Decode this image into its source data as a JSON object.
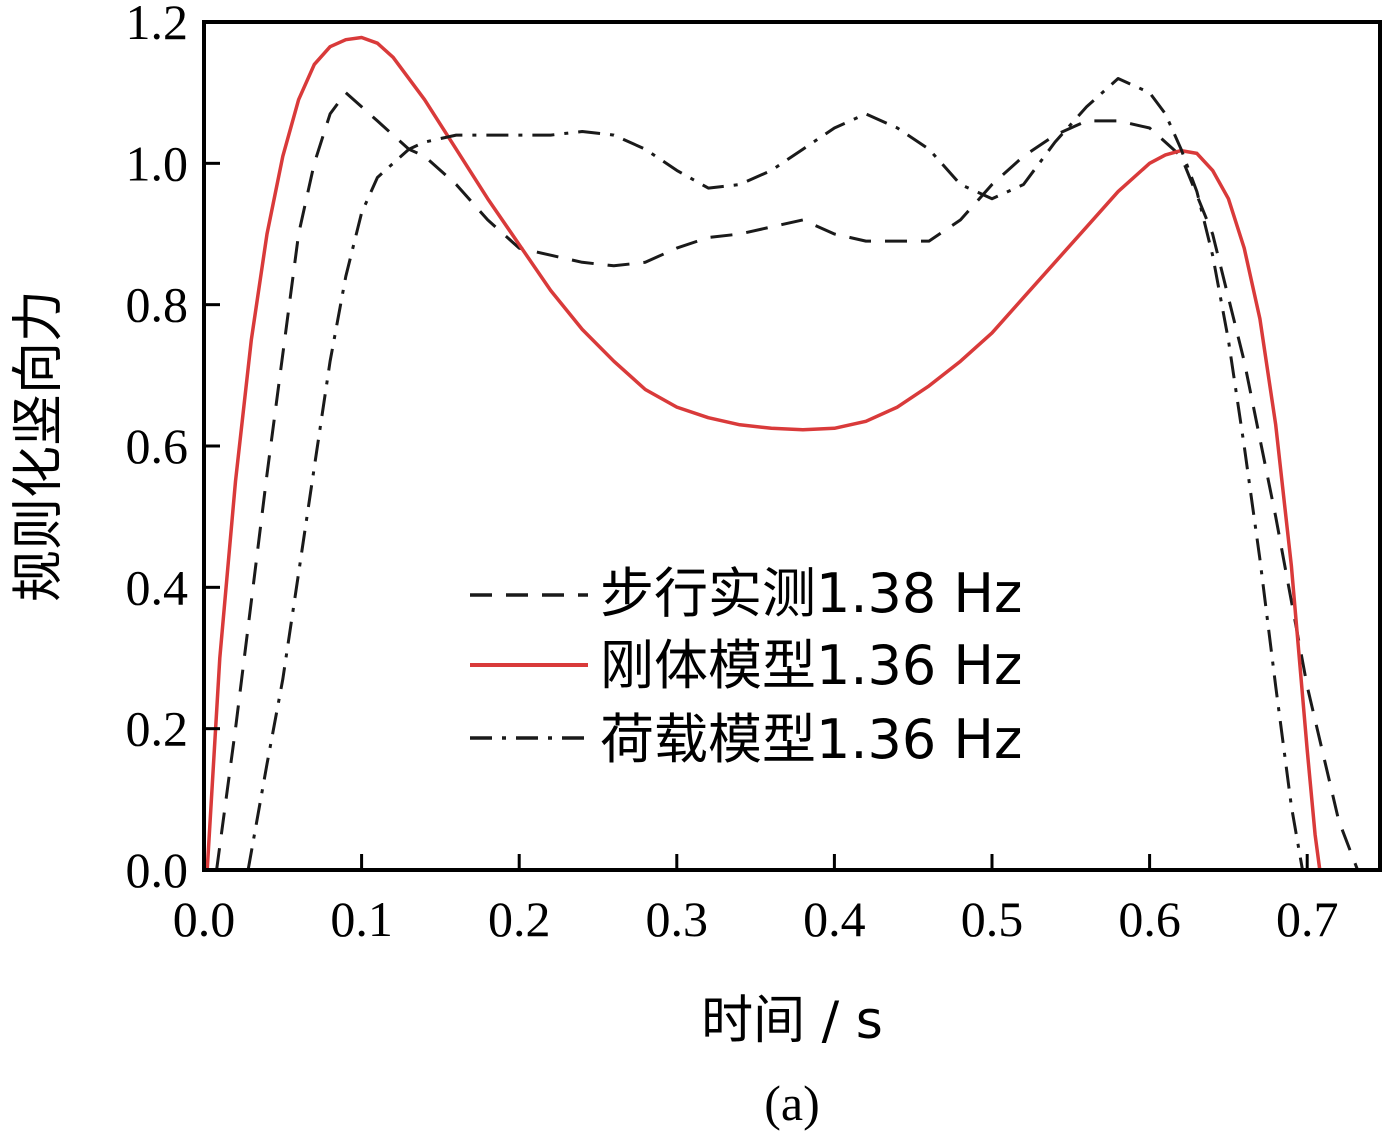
{
  "chart_data": {
    "type": "line",
    "xlabel": "时间 / s",
    "ylabel": "规则化竖向力",
    "caption": "(a)",
    "xlim": [
      0,
      0.74
    ],
    "ylim": [
      0,
      1.2
    ],
    "xticks": [
      "0.0",
      "0.1",
      "0.2",
      "0.3",
      "0.4",
      "0.5",
      "0.6",
      "0.7"
    ],
    "yticks": [
      "0.0",
      "0.2",
      "0.4",
      "0.6",
      "0.8",
      "1.0",
      "1.2"
    ],
    "grid": false,
    "legend_position": "center",
    "series": [
      {
        "name": "步行实测1.38 Hz",
        "style": "dashed",
        "color": "#1a1a1a",
        "x": [
          0.008,
          0.02,
          0.03,
          0.04,
          0.05,
          0.06,
          0.07,
          0.08,
          0.09,
          0.1,
          0.11,
          0.12,
          0.13,
          0.14,
          0.16,
          0.18,
          0.2,
          0.22,
          0.24,
          0.26,
          0.28,
          0.3,
          0.32,
          0.34,
          0.36,
          0.38,
          0.4,
          0.42,
          0.44,
          0.46,
          0.48,
          0.5,
          0.52,
          0.54,
          0.56,
          0.58,
          0.6,
          0.62,
          0.64,
          0.66,
          0.68,
          0.7,
          0.72,
          0.732
        ],
        "y": [
          0.0,
          0.2,
          0.38,
          0.56,
          0.73,
          0.9,
          1.0,
          1.07,
          1.1,
          1.08,
          1.06,
          1.04,
          1.02,
          1.01,
          0.97,
          0.92,
          0.88,
          0.87,
          0.86,
          0.855,
          0.86,
          0.88,
          0.895,
          0.9,
          0.91,
          0.92,
          0.9,
          0.89,
          0.89,
          0.89,
          0.92,
          0.97,
          1.01,
          1.04,
          1.06,
          1.06,
          1.05,
          1.01,
          0.9,
          0.72,
          0.5,
          0.26,
          0.07,
          0.0
        ]
      },
      {
        "name": "刚体模型1.36 Hz",
        "style": "solid",
        "color": "#d93a3a",
        "x": [
          0.002,
          0.01,
          0.02,
          0.03,
          0.04,
          0.05,
          0.06,
          0.07,
          0.08,
          0.09,
          0.1,
          0.11,
          0.12,
          0.14,
          0.16,
          0.18,
          0.2,
          0.22,
          0.24,
          0.26,
          0.28,
          0.3,
          0.32,
          0.34,
          0.36,
          0.38,
          0.4,
          0.42,
          0.44,
          0.46,
          0.48,
          0.5,
          0.52,
          0.54,
          0.56,
          0.58,
          0.6,
          0.61,
          0.62,
          0.63,
          0.64,
          0.65,
          0.66,
          0.67,
          0.68,
          0.69,
          0.7,
          0.705,
          0.708
        ],
        "y": [
          0.0,
          0.3,
          0.55,
          0.75,
          0.9,
          1.01,
          1.09,
          1.14,
          1.165,
          1.175,
          1.178,
          1.17,
          1.15,
          1.09,
          1.02,
          0.95,
          0.885,
          0.82,
          0.765,
          0.72,
          0.68,
          0.655,
          0.64,
          0.63,
          0.625,
          0.623,
          0.625,
          0.635,
          0.655,
          0.685,
          0.72,
          0.76,
          0.81,
          0.86,
          0.91,
          0.96,
          1.0,
          1.012,
          1.018,
          1.014,
          0.99,
          0.95,
          0.88,
          0.78,
          0.63,
          0.43,
          0.17,
          0.05,
          0.0
        ]
      },
      {
        "name": "荷载模型1.36 Hz",
        "style": "dashdot",
        "color": "#1a1a1a",
        "x": [
          0.028,
          0.04,
          0.05,
          0.06,
          0.07,
          0.08,
          0.09,
          0.1,
          0.11,
          0.12,
          0.13,
          0.14,
          0.16,
          0.18,
          0.2,
          0.22,
          0.24,
          0.26,
          0.28,
          0.3,
          0.32,
          0.34,
          0.36,
          0.38,
          0.4,
          0.42,
          0.44,
          0.46,
          0.48,
          0.5,
          0.52,
          0.54,
          0.56,
          0.58,
          0.6,
          0.61,
          0.62,
          0.63,
          0.64,
          0.65,
          0.66,
          0.67,
          0.68,
          0.69,
          0.697
        ],
        "y": [
          0.0,
          0.15,
          0.27,
          0.42,
          0.57,
          0.72,
          0.84,
          0.93,
          0.98,
          1.0,
          1.02,
          1.03,
          1.04,
          1.04,
          1.04,
          1.04,
          1.045,
          1.04,
          1.02,
          0.99,
          0.965,
          0.97,
          0.99,
          1.02,
          1.05,
          1.07,
          1.05,
          1.02,
          0.97,
          0.95,
          0.97,
          1.03,
          1.08,
          1.12,
          1.1,
          1.07,
          1.02,
          0.96,
          0.87,
          0.75,
          0.6,
          0.44,
          0.26,
          0.09,
          0.0
        ]
      }
    ]
  }
}
